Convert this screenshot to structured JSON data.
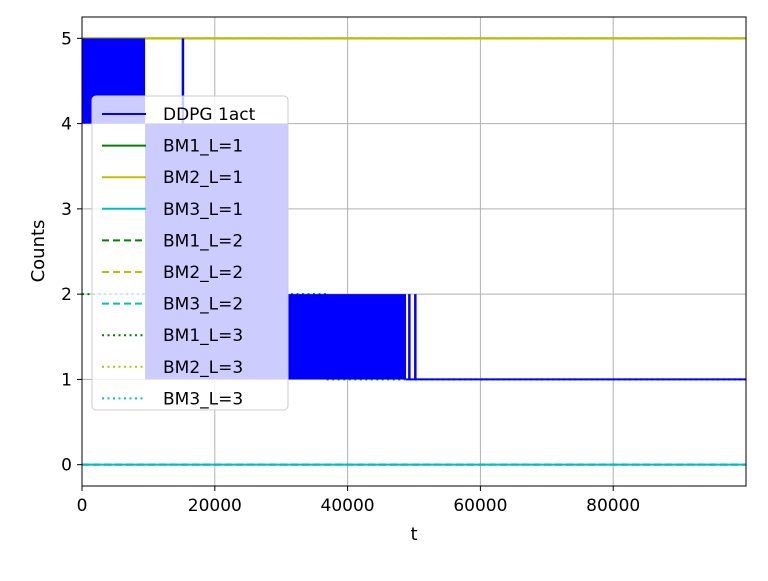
{
  "chart_data": {
    "type": "line",
    "xlabel": "t",
    "ylabel": "Counts",
    "xlim": [
      0,
      100000
    ],
    "ylim": [
      -0.25,
      5.25
    ],
    "xticks": [
      0,
      20000,
      40000,
      60000,
      80000
    ],
    "xtick_labels": [
      "0",
      "20000",
      "40000",
      "60000",
      "80000"
    ],
    "yticks": [
      0,
      1,
      2,
      3,
      4,
      5
    ],
    "ytick_labels": [
      "0",
      "1",
      "2",
      "3",
      "4",
      "5"
    ],
    "grid": true,
    "legend_position": "left",
    "series": [
      {
        "name": "DDPG 1act",
        "color": "#0000ff",
        "style": "solid",
        "kind": "oscillating",
        "bands": [
          {
            "x0": 0,
            "x1": 9500,
            "low": 4,
            "high": 5
          },
          {
            "x0": 9500,
            "x1": 31000,
            "low": 1,
            "high": 4
          },
          {
            "x0": 31000,
            "x1": 48800,
            "low": 1,
            "high": 2
          }
        ],
        "spikes": [
          {
            "x": 15200,
            "low": 4,
            "high": 5
          },
          {
            "x": 49300,
            "low": 1,
            "high": 2
          },
          {
            "x": 50200,
            "low": 1,
            "high": 2
          }
        ],
        "steady": {
          "x0": 48800,
          "x1": 100000,
          "value": 1
        }
      },
      {
        "name": "BM1_L=1",
        "color": "#008000",
        "style": "solid",
        "x": [
          0,
          100000
        ],
        "y": [
          5,
          5
        ]
      },
      {
        "name": "BM2_L=1",
        "color": "#bfbf00",
        "style": "solid",
        "x": [
          0,
          100000
        ],
        "y": [
          5,
          5
        ]
      },
      {
        "name": "BM3_L=1",
        "color": "#00bfbf",
        "style": "solid",
        "x": [
          0,
          100000
        ],
        "y": [
          0,
          0
        ]
      },
      {
        "name": "BM1_L=2",
        "color": "#008000",
        "style": "dashed",
        "x": [
          0,
          100000
        ],
        "y": [
          0,
          0
        ]
      },
      {
        "name": "BM2_L=2",
        "color": "#bfbf00",
        "style": "dashed",
        "x": [
          0,
          100000
        ],
        "y": [
          5,
          5
        ]
      },
      {
        "name": "BM3_L=2",
        "color": "#00bfbf",
        "style": "dashed",
        "x": [
          0,
          100000
        ],
        "y": [
          0,
          0
        ]
      },
      {
        "name": "BM1_L=3",
        "color": "#008000",
        "style": "dotted",
        "x": [
          0,
          37000,
          37000,
          100000
        ],
        "y": [
          2,
          2,
          1,
          1
        ]
      },
      {
        "name": "BM2_L=3",
        "color": "#bfbf00",
        "style": "dotted",
        "x": [
          0,
          100000
        ],
        "y": [
          5,
          5
        ]
      },
      {
        "name": "BM3_L=3",
        "color": "#00bfbf",
        "style": "dotted",
        "x": [
          0,
          100000
        ],
        "y": [
          0,
          0
        ]
      }
    ]
  }
}
